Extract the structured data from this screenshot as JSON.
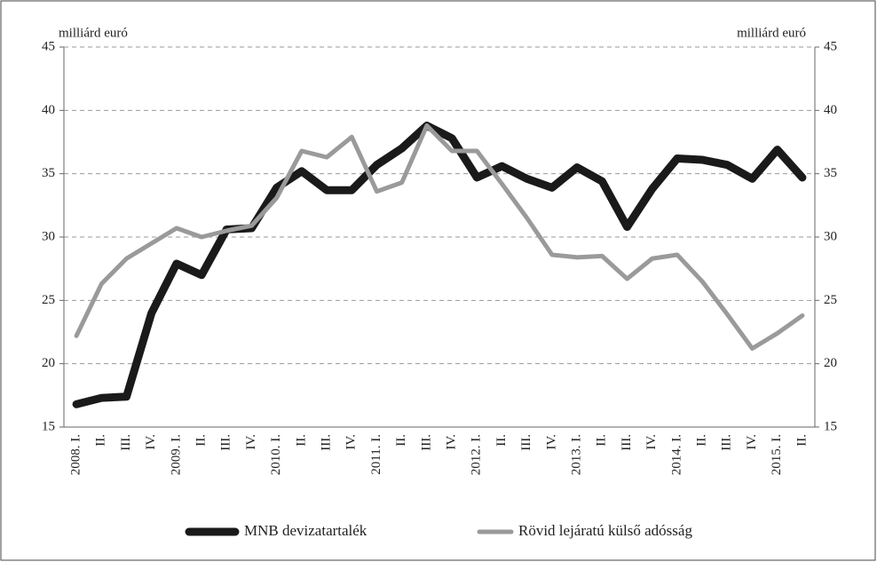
{
  "chart_data": {
    "type": "line",
    "y_axis_label": "milliárd euró",
    "y2_axis_label": "milliárd euró",
    "categories": [
      "2008. I.",
      "II.",
      "III.",
      "IV.",
      "2009. I.",
      "II.",
      "III.",
      "IV.",
      "2010. I.",
      "II.",
      "III.",
      "IV.",
      "2011. I.",
      "II.",
      "III.",
      "IV.",
      "2012. I.",
      "II.",
      "III.",
      "IV.",
      "2013. I.",
      "II.",
      "III.",
      "IV.",
      "2014. I.",
      "II.",
      "III.",
      "IV.",
      "2015. I.",
      "II."
    ],
    "series": [
      {
        "name": "MNB devizatartalék",
        "color": "#1a1a1a",
        "values": [
          16.8,
          17.3,
          17.4,
          24.0,
          27.9,
          27.0,
          30.6,
          30.7,
          33.9,
          35.2,
          33.7,
          33.7,
          35.7,
          37.0,
          38.8,
          37.8,
          34.7,
          35.6,
          34.6,
          33.9,
          35.5,
          34.4,
          30.8,
          33.8,
          36.2,
          36.1,
          35.7,
          34.6,
          36.9,
          34.7
        ]
      },
      {
        "name": "Rövid lejáratú külső adósság",
        "color": "#9a9a9a",
        "values": [
          22.2,
          26.3,
          28.3,
          29.5,
          30.7,
          30.0,
          30.5,
          30.9,
          33.1,
          36.8,
          36.3,
          37.9,
          33.6,
          34.3,
          38.8,
          36.8,
          36.8,
          34.2,
          31.5,
          28.6,
          28.4,
          28.5,
          26.7,
          28.3,
          28.6,
          26.5,
          23.9,
          21.2,
          22.4,
          23.8
        ]
      }
    ],
    "ylim": [
      15,
      45
    ],
    "yticks": [
      15,
      20,
      25,
      30,
      35,
      40,
      45
    ],
    "y2lim": [
      15,
      45
    ],
    "y2ticks": [
      15,
      20,
      25,
      30,
      35,
      40,
      45
    ],
    "grid": true
  }
}
